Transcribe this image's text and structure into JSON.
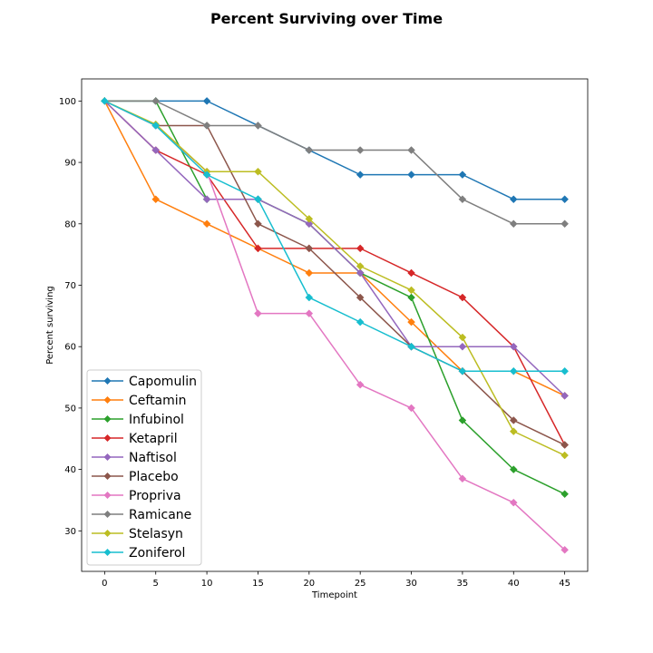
{
  "chart_data": {
    "type": "line",
    "title": "Percent Surviving over Time",
    "xlabel": "Timepoint",
    "ylabel": "Percent surviving",
    "x": [
      0,
      5,
      10,
      15,
      20,
      25,
      30,
      35,
      40,
      45
    ],
    "xticks": [
      0,
      5,
      10,
      15,
      20,
      25,
      30,
      35,
      40,
      45
    ],
    "yticks": [
      30,
      40,
      50,
      60,
      70,
      80,
      90,
      100
    ],
    "xlim": [
      -2.25,
      47.25
    ],
    "ylim": [
      23.4,
      103.6
    ],
    "grid": false,
    "legend_position": "lower-left",
    "marker": "diamond",
    "series": [
      {
        "name": "Capomulin",
        "color": "#1f77b4",
        "values": [
          100,
          100,
          100,
          96,
          92,
          88,
          88,
          88,
          84,
          84
        ]
      },
      {
        "name": "Ceftamin",
        "color": "#ff7f0e",
        "values": [
          100,
          84,
          80,
          76,
          72,
          72,
          64,
          56,
          56,
          52
        ]
      },
      {
        "name": "Infubinol",
        "color": "#2ca02c",
        "values": [
          100,
          100,
          84,
          84,
          80,
          72,
          68,
          48,
          40,
          36
        ]
      },
      {
        "name": "Ketapril",
        "color": "#d62728",
        "values": [
          100,
          92,
          88,
          76,
          76,
          76,
          72,
          68,
          60,
          44
        ]
      },
      {
        "name": "Naftisol",
        "color": "#9467bd",
        "values": [
          100,
          92,
          84,
          84,
          80,
          72,
          60,
          60,
          60,
          52
        ]
      },
      {
        "name": "Placebo",
        "color": "#8c564b",
        "values": [
          100,
          96,
          96,
          80,
          76,
          68,
          60,
          56,
          48,
          44
        ]
      },
      {
        "name": "Propriva",
        "color": "#e377c2",
        "values": [
          100,
          96,
          88.5,
          65.4,
          65.4,
          53.8,
          50,
          38.5,
          34.6,
          26.9
        ]
      },
      {
        "name": "Ramicane",
        "color": "#7f7f7f",
        "values": [
          100,
          100,
          96,
          96,
          92,
          92,
          92,
          84,
          80,
          80
        ]
      },
      {
        "name": "Stelasyn",
        "color": "#bcbd22",
        "values": [
          100,
          96.2,
          88.5,
          88.5,
          80.8,
          73.1,
          69.2,
          61.5,
          46.2,
          42.3
        ]
      },
      {
        "name": "Zoniferol",
        "color": "#17becf",
        "values": [
          100,
          96,
          88,
          84,
          68,
          64,
          60,
          56,
          56,
          56
        ]
      }
    ]
  }
}
